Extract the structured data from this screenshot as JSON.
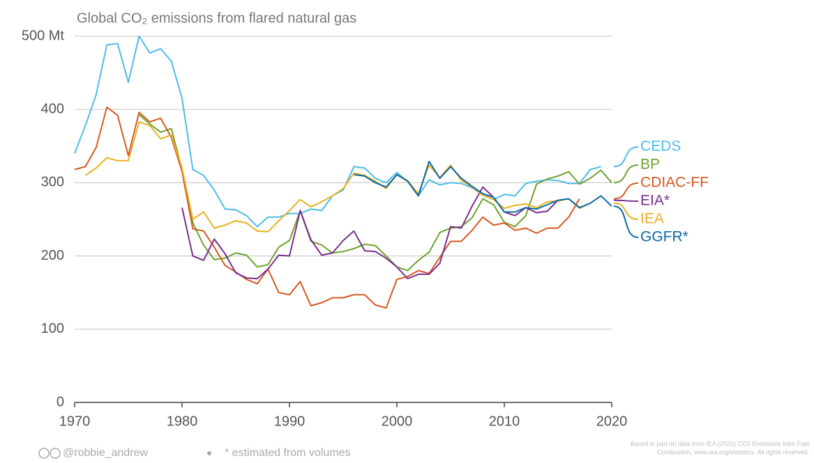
{
  "chart_data": {
    "type": "line",
    "title": "Global CO₂ emissions from flared natural gas",
    "x": [
      1970,
      1971,
      1972,
      1973,
      1974,
      1975,
      1976,
      1977,
      1978,
      1979,
      1980,
      1981,
      1982,
      1983,
      1984,
      1985,
      1986,
      1987,
      1988,
      1989,
      1990,
      1991,
      1992,
      1993,
      1994,
      1995,
      1996,
      1997,
      1998,
      1999,
      2000,
      2001,
      2002,
      2003,
      2004,
      2005,
      2006,
      2007,
      2008,
      2009,
      2010,
      2011,
      2012,
      2013,
      2014,
      2015,
      2016,
      2017,
      2018,
      2019,
      2020
    ],
    "xlim": [
      1970,
      2020
    ],
    "xticks": [
      1970,
      1980,
      1990,
      2000,
      2010,
      2020
    ],
    "ylim": [
      0,
      500
    ],
    "yticks": [
      0,
      100,
      200,
      300,
      400,
      {
        "value": 500,
        "label": "500 Mt"
      }
    ],
    "grid": true,
    "series": [
      {
        "name": "CEDS",
        "color": "#4cbde9",
        "values": [
          340,
          378,
          420,
          488,
          490,
          437,
          500,
          477,
          483,
          466,
          415,
          318,
          310,
          290,
          264,
          263,
          255,
          240,
          253,
          253,
          258,
          258,
          264,
          262,
          282,
          290,
          322,
          320,
          306,
          300,
          314,
          302,
          282,
          304,
          297,
          300,
          299,
          293,
          283,
          277,
          284,
          282,
          299,
          302,
          304,
          303,
          299,
          299,
          318,
          322,
          null
        ]
      },
      {
        "name": "BP",
        "color": "#6ea22c",
        "values": [
          null,
          null,
          null,
          null,
          null,
          null,
          393,
          380,
          369,
          374,
          318,
          245,
          215,
          195,
          197,
          204,
          201,
          185,
          188,
          212,
          221,
          262,
          220,
          215,
          204,
          206,
          210,
          216,
          214,
          200,
          185,
          180,
          194,
          205,
          232,
          238,
          240,
          252,
          278,
          270,
          246,
          240,
          255,
          298,
          305,
          309,
          315,
          298,
          306,
          317,
          300
        ]
      },
      {
        "name": "CDIAC-FF",
        "color": "#d5581f",
        "values": [
          318,
          322,
          348,
          403,
          392,
          337,
          396,
          383,
          388,
          362,
          315,
          237,
          234,
          212,
          187,
          178,
          168,
          162,
          182,
          150,
          147,
          165,
          132,
          136,
          143,
          143,
          147,
          147,
          133,
          129,
          168,
          172,
          180,
          176,
          198,
          220,
          220,
          235,
          253,
          242,
          245,
          235,
          238,
          231,
          238,
          238,
          253,
          278,
          null,
          null,
          null
        ]
      },
      {
        "name": "EIA*",
        "color": "#7a2d8e",
        "values": [
          null,
          null,
          null,
          null,
          null,
          null,
          null,
          null,
          null,
          null,
          266,
          200,
          194,
          223,
          203,
          177,
          170,
          169,
          182,
          201,
          200,
          262,
          222,
          201,
          204,
          221,
          234,
          207,
          206,
          197,
          185,
          169,
          175,
          175,
          190,
          240,
          238,
          268,
          294,
          280,
          260,
          255,
          266,
          259,
          261,
          276,
          null,
          null,
          null,
          null,
          null
        ]
      },
      {
        "name": "IEA",
        "color": "#e8b022",
        "values": [
          null,
          310,
          320,
          334,
          330,
          330,
          383,
          378,
          360,
          365,
          320,
          250,
          260,
          238,
          242,
          248,
          245,
          234,
          233,
          248,
          262,
          277,
          267,
          274,
          282,
          292,
          313,
          310,
          302,
          292,
          311,
          303,
          285,
          324,
          307,
          324,
          303,
          294,
          283,
          277,
          265,
          269,
          271,
          266,
          274,
          275,
          278,
          265,
          272,
          null,
          null
        ]
      },
      {
        "name": "GGFR*",
        "color": "#0b68a6",
        "values": [
          null,
          null,
          null,
          null,
          null,
          null,
          null,
          null,
          null,
          null,
          null,
          null,
          null,
          null,
          null,
          null,
          null,
          null,
          null,
          null,
          null,
          null,
          null,
          null,
          null,
          null,
          311,
          309,
          300,
          294,
          311,
          302,
          282,
          329,
          306,
          322,
          306,
          295,
          285,
          280,
          260,
          260,
          266,
          264,
          270,
          276,
          278,
          266,
          272,
          282,
          268
        ]
      }
    ],
    "footer": {
      "author": "@robbie_andrew",
      "note": "* estimated from volumes"
    },
    "source_note": [
      "Based in part on data from IEA (2020) CO2 Emissions from Fuel",
      "Combustion, www.iea.org/statistics. All rights reserved."
    ]
  }
}
